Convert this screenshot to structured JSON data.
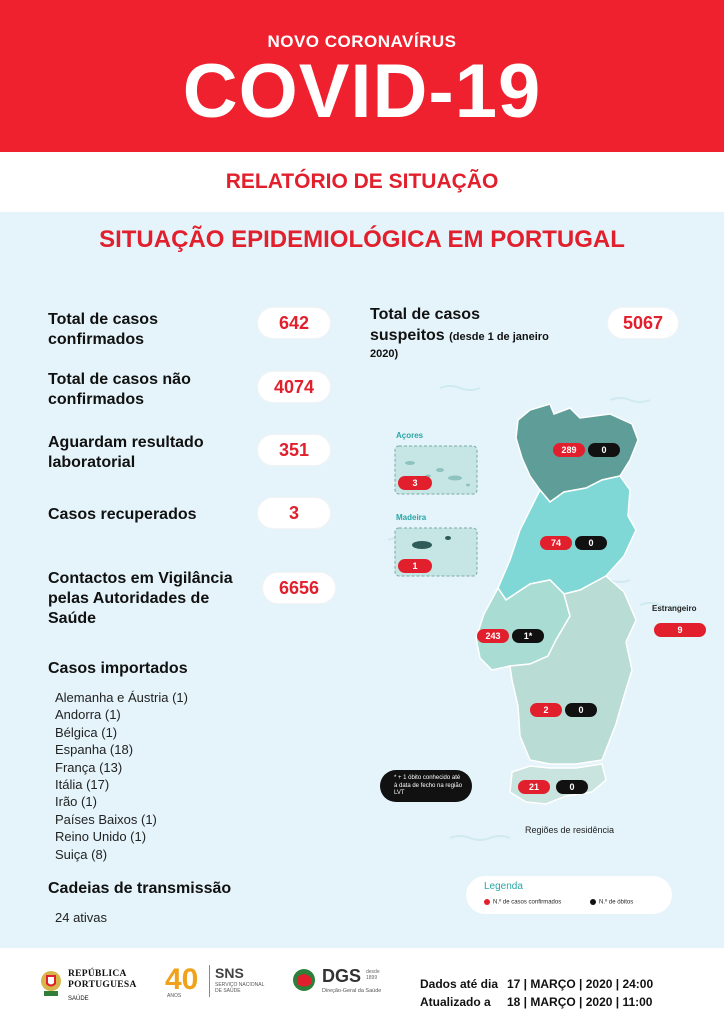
{
  "header": {
    "subtitle": "NOVO CORONAVÍRUS",
    "title": "COVID-19"
  },
  "report_label": "RELATÓRIO DE SITUAÇÃO",
  "section_title": "SITUAÇÃO EPIDEMIOLÓGICA EM PORTUGAL",
  "stats": {
    "confirmed": {
      "label_1": "Total de casos",
      "label_2": "confirmados",
      "value": "642"
    },
    "not_confirmed": {
      "label_1": "Total de casos não",
      "label_2": "confirmados",
      "value": "4074"
    },
    "awaiting": {
      "label_1": "Aguardam resultado",
      "label_2": "laboratorial",
      "value": "351"
    },
    "recovered": {
      "label_1": "Casos recuperados",
      "value": "3"
    },
    "contacts": {
      "label_1": "Contactos em Vigilância",
      "label_2": "pelas Autoridades de",
      "label_3": "Saúde",
      "value": "6656"
    },
    "suspected": {
      "label_1": "Total de casos",
      "label_2": "suspeitos",
      "label_note": "(desde 1 de janeiro",
      "label_note_2": "2020)",
      "value": "5067"
    }
  },
  "imported": {
    "heading": "Casos importados",
    "items": [
      "Alemanha e Áustria (1)",
      "Andorra (1)",
      "Bélgica (1)",
      "Espanha (18)",
      "França (13)",
      "Itália (17)",
      "Irão (1)",
      "Países Baixos (1)",
      "Reino Unido (1)",
      "Suiça (8)"
    ]
  },
  "chains": {
    "heading": "Cadeias de transmissão",
    "value": "24 ativas"
  },
  "map": {
    "acores": {
      "name": "Açores",
      "cases": "3"
    },
    "madeira": {
      "name": "Madeira",
      "cases": "1"
    },
    "norte": {
      "cases": "289",
      "deaths": "0"
    },
    "centro": {
      "cases": "74",
      "deaths": "0"
    },
    "lvt": {
      "cases": "243",
      "deaths": "1*"
    },
    "alentejo": {
      "cases": "2",
      "deaths": "0"
    },
    "algarve": {
      "cases": "21",
      "deaths": "0"
    },
    "estrangeiro": {
      "name": "Estrangeiro",
      "cases": "9"
    },
    "note": "* + 1 óbito conhecido até à data de fecho na região LVT",
    "caption": "Regiões de residência"
  },
  "legend": {
    "title": "Legenda",
    "cases_label": "N.º de casos confirmados",
    "deaths_label": "N.º de óbitos"
  },
  "footer": {
    "rp_line1": "REPÚBLICA",
    "rp_line2": "PORTUGUESA",
    "rp_line3": "SAÚDE",
    "sns_years": "40",
    "sns_anos": "ANOS",
    "sns_name": "SNS",
    "sns_line1": "SERVIÇO NACIONAL",
    "sns_line2": "DE SAÚDE",
    "dgs_name": "DGS",
    "dgs_since": "desde 1899",
    "dgs_line": "Direção-Geral da Saúde",
    "data_label": "Dados até dia",
    "data_value": "17 | MARÇO | 2020 | 24:00",
    "updated_label": "Atualizado a",
    "updated_value": "18 | MARÇO | 2020 | 11:00"
  },
  "colors": {
    "brand_red": "#f0212f",
    "background_blue": "#e4f4fa",
    "norte": "#5f9e98",
    "centro": "#7fd8d5",
    "lvt": "#a9dcd2",
    "alentejo": "#b9dcd5",
    "algarve": "#c9e3de"
  }
}
